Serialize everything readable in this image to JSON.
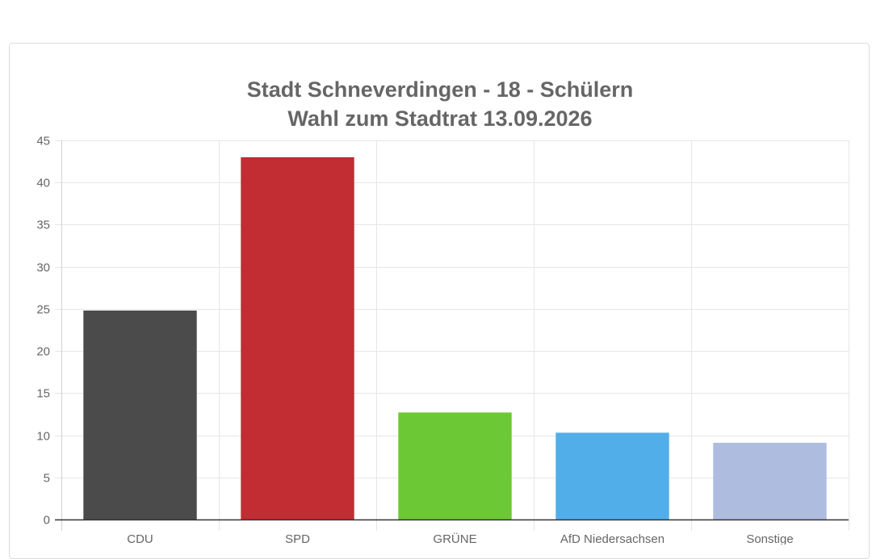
{
  "chart_data": {
    "type": "bar",
    "title": [
      "Stadt Schneverdingen - 18 - Schülern",
      "Wahl zum Stadtrat 13.09.2026"
    ],
    "categories": [
      "CDU",
      "SPD",
      "GRÜNE",
      "AfD Niedersachsen",
      "Sonstige"
    ],
    "values": [
      24.8,
      43.0,
      12.7,
      10.3,
      9.1
    ],
    "colors": [
      "#4b4b4b",
      "#c22c33",
      "#6cc935",
      "#52aee8",
      "#aebce0"
    ],
    "ylim": [
      0,
      45
    ],
    "yticks": [
      0,
      5,
      10,
      15,
      20,
      25,
      30,
      35,
      40,
      45
    ],
    "grid": true,
    "legend": "none"
  }
}
